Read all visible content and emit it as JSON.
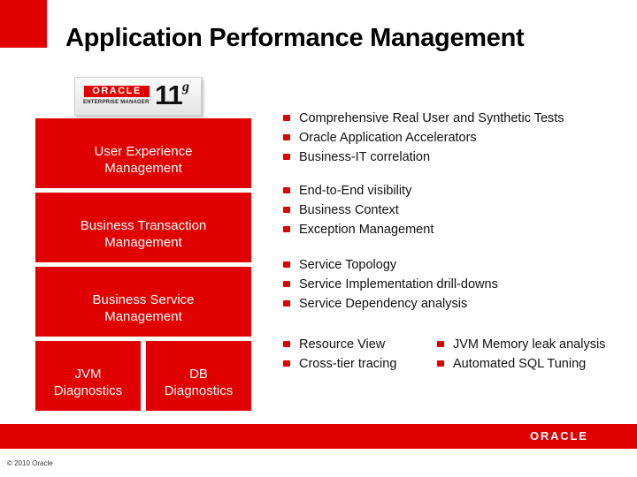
{
  "title": "Application Performance Management",
  "logo": {
    "brand": "ORACLE",
    "product": "ENTERPRISE MANAGER",
    "version": "11",
    "version_suffix": "g"
  },
  "blocks": {
    "user_experience": [
      "User Experience",
      "Management"
    ],
    "business_transaction": [
      "Business Transaction",
      "Management"
    ],
    "business_service": [
      "Business Service",
      "Management"
    ],
    "jvm": [
      "JVM",
      "Diagnostics"
    ],
    "db": [
      "DB",
      "Diagnostics"
    ]
  },
  "bullets": {
    "user_experience": [
      "Comprehensive Real User and Synthetic Tests",
      "Oracle Application Accelerators",
      "Business-IT correlation"
    ],
    "business_transaction": [
      "End-to-End visibility",
      "Business Context",
      "Exception Management"
    ],
    "business_service": [
      "Service Topology",
      "Service Implementation drill-downs",
      "Service Dependency analysis"
    ],
    "diagnostics_left": [
      "Resource View",
      "Cross-tier tracing"
    ],
    "diagnostics_right": [
      "JVM Memory leak analysis",
      "Automated SQL Tuning"
    ]
  },
  "footer": {
    "logo": "ORACLE",
    "copyright": "© 2010 Oracle"
  },
  "colors": {
    "accent_red": "#e00000",
    "background": "#ffffff",
    "text": "#111111"
  }
}
